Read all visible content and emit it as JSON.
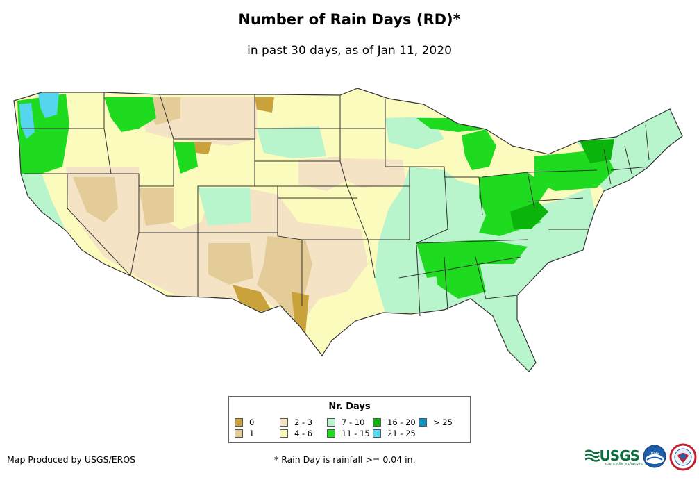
{
  "title": "Number of Rain Days (RD)*",
  "subtitle": "in past 30 days, as of Jan 11, 2020",
  "legend": {
    "title": "Nr. Days",
    "items": [
      {
        "label": "0",
        "color": "#c9a23c"
      },
      {
        "label": "1",
        "color": "#e3cc98"
      },
      {
        "label": "2 - 3",
        "color": "#f4e3c4"
      },
      {
        "label": "4 - 6",
        "color": "#fbfbbe"
      },
      {
        "label": "7 - 10",
        "color": "#b8f4cc"
      },
      {
        "label": "11 - 15",
        "color": "#1fdb1f"
      },
      {
        "label": "16 - 20",
        "color": "#0bb40b"
      },
      {
        "label": "21 - 25",
        "color": "#55d6ee"
      },
      {
        "label": "> 25",
        "color": "#1190c4"
      }
    ]
  },
  "credit": "Map Produced by USGS/EROS",
  "footnote": "* Rain Day is rainfall >= 0.04 in.",
  "logos": {
    "usgs": "USGS",
    "usgs_tagline": "science for a changing world",
    "noaa": "noaa"
  }
}
